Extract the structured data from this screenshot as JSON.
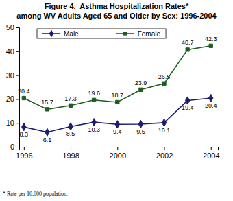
{
  "chart_data": {
    "type": "line",
    "title": [
      "Figure 4.  Asthma Hospitalization Rates*",
      "among WV Adults Aged 65 and Older by Sex: 1996-2004"
    ],
    "annotations": [
      "* Rate per 10,000 population."
    ],
    "x": [
      1996,
      1997,
      1998,
      1999,
      2000,
      2001,
      2002,
      2003,
      2004
    ],
    "xlim": [
      1995.8,
      2004.3
    ],
    "xticks": [
      1996,
      1998,
      2000,
      2002,
      2004
    ],
    "ylim": [
      0,
      50
    ],
    "yticks": [
      0,
      10,
      20,
      30,
      40,
      50
    ],
    "grid": false,
    "legend": "top",
    "data_labels": true,
    "series": [
      {
        "name": "Male",
        "color": "#1c1c72",
        "marker": "diamond",
        "values": [
          8.3,
          6.1,
          8.5,
          10.3,
          9.4,
          9.5,
          10.1,
          19.4,
          20.4
        ]
      },
      {
        "name": "Female",
        "color": "#1f5c1f",
        "marker": "square",
        "values": [
          20.4,
          15.7,
          17.3,
          19.6,
          18.7,
          23.9,
          26.5,
          40.7,
          42.3
        ]
      }
    ]
  }
}
